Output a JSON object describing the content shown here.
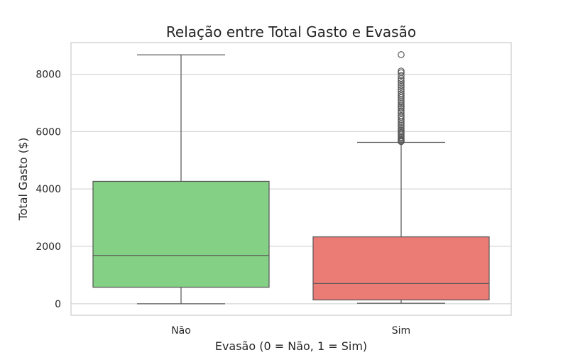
{
  "chart_data": {
    "type": "box",
    "title": "Relação entre Total Gasto e Evasão",
    "xlabel": "Evasão (0 = Não, 1 = Sim)",
    "ylabel": "Total Gasto ($)",
    "ylim": [
      -400,
      9100
    ],
    "yticks": [
      0,
      2000,
      4000,
      6000,
      8000
    ],
    "grid": "horizontal",
    "categories": [
      "Não",
      "Sim"
    ],
    "boxes": [
      {
        "category": "Não",
        "color": "#84d084",
        "whisker_low": 0,
        "q1": 577,
        "median": 1683,
        "q3": 4265,
        "whisker_high": 8672,
        "outliers": []
      },
      {
        "category": "Sim",
        "color": "#eb7b75",
        "whisker_low": 19,
        "q1": 134,
        "median": 704,
        "q3": 2331,
        "whisker_high": 5624,
        "outliers": [
          5650,
          5680,
          5720,
          5760,
          5800,
          5850,
          5900,
          5950,
          6000,
          6050,
          6110,
          6170,
          6230,
          6290,
          6350,
          6420,
          6500,
          6560,
          6650,
          6720,
          6800,
          6850,
          6900,
          6960,
          7030,
          7100,
          7180,
          7250,
          7320,
          7400,
          7470,
          7550,
          7620,
          7700,
          7780,
          7850,
          7950,
          8050,
          8110,
          8680
        ]
      }
    ]
  }
}
